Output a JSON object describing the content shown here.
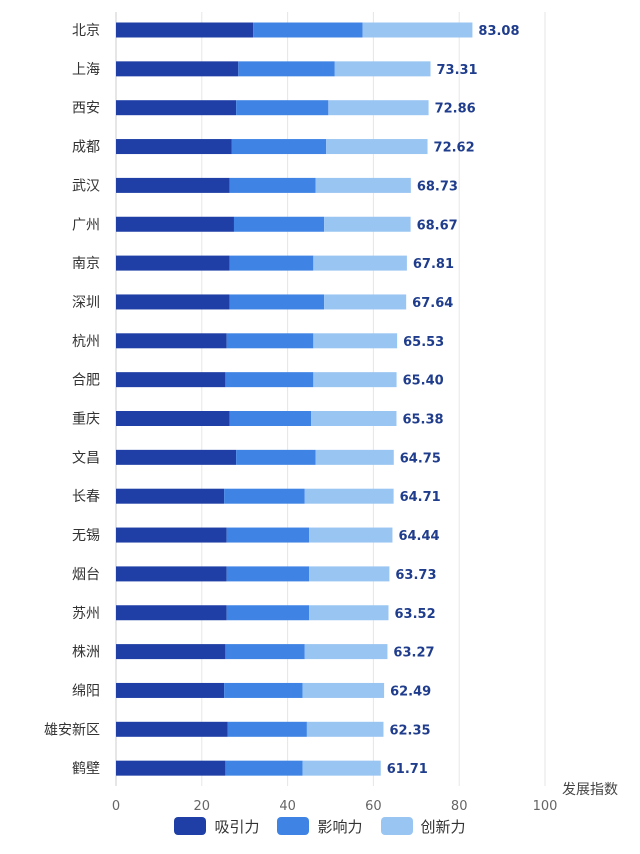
{
  "chart_data": {
    "type": "bar",
    "orientation": "horizontal",
    "stacked": true,
    "title": "",
    "xlabel": "发展指数",
    "ylabel": "",
    "xlim": [
      0,
      100
    ],
    "x_ticks": [
      "0",
      "20",
      "40",
      "60",
      "80",
      "100"
    ],
    "grid": true,
    "legend_position": "bottom",
    "categories": [
      "北京",
      "上海",
      "西安",
      "成都",
      "武汉",
      "广州",
      "南京",
      "深圳",
      "杭州",
      "合肥",
      "重庆",
      "文昌",
      "长春",
      "无锡",
      "烟台",
      "苏州",
      "株洲",
      "绵阳",
      "雄安新区",
      "鹤壁"
    ],
    "series": [
      {
        "name": "吸引力",
        "color": "#1f3fa6",
        "values": [
          32.0,
          28.5,
          28.0,
          27.0,
          26.5,
          27.5,
          26.5,
          26.5,
          25.8,
          25.5,
          26.5,
          28.0,
          25.2,
          25.8,
          25.8,
          25.8,
          25.5,
          25.2,
          26.0,
          25.5
        ]
      },
      {
        "name": "影响力",
        "color": "#3f84e5",
        "values": [
          25.5,
          22.5,
          21.5,
          22.0,
          20.0,
          21.0,
          19.5,
          22.0,
          20.2,
          20.5,
          19.0,
          18.5,
          18.8,
          19.2,
          19.2,
          19.2,
          18.5,
          18.3,
          18.5,
          18.0
        ]
      },
      {
        "name": "创新力",
        "color": "#99c5f2",
        "values": [
          25.58,
          22.31,
          23.36,
          23.62,
          22.23,
          20.17,
          21.81,
          19.14,
          19.53,
          19.4,
          19.88,
          18.25,
          20.71,
          19.44,
          18.73,
          18.52,
          19.27,
          18.99,
          17.85,
          18.21
        ]
      }
    ],
    "totals": [
      "83.08",
      "73.31",
      "72.86",
      "72.62",
      "68.73",
      "68.67",
      "67.81",
      "67.64",
      "65.53",
      "65.40",
      "65.38",
      "64.75",
      "64.71",
      "64.44",
      "63.73",
      "63.52",
      "63.27",
      "62.49",
      "62.35",
      "61.71"
    ]
  }
}
